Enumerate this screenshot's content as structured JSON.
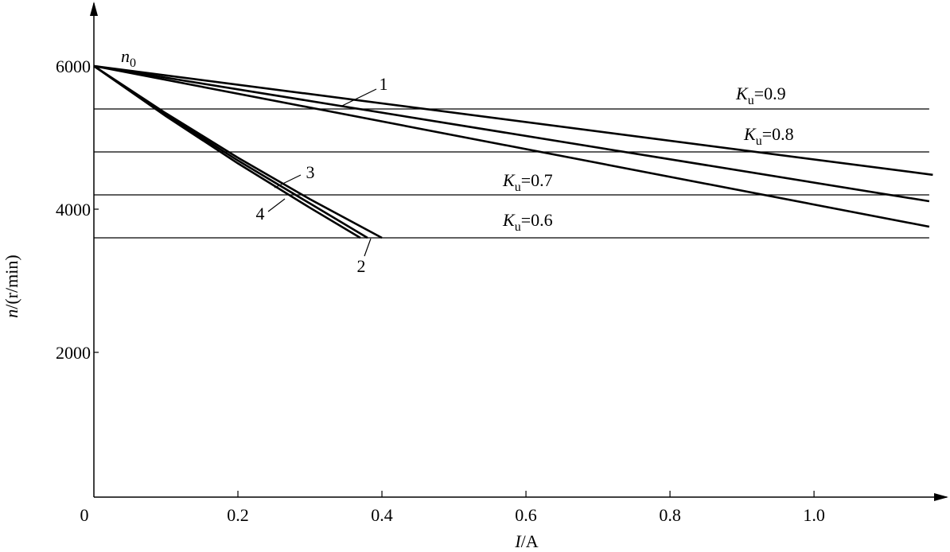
{
  "chart_data": {
    "type": "line",
    "x_label": {
      "symbol": "I",
      "text": "/A"
    },
    "y_label": {
      "symbol": "n",
      "text": "/(r/min)"
    },
    "origin_label": {
      "symbol": "n",
      "subscript": "0"
    },
    "xlim": [
      0,
      1.18
    ],
    "ylim": [
      0,
      6900
    ],
    "xticks": [
      0,
      0.2,
      0.4,
      0.6,
      0.8,
      {
        "value": 1,
        "label": "1.0"
      }
    ],
    "yticks": [
      2000,
      4000,
      6000
    ],
    "color": "#000000",
    "series": [
      {
        "x": [
          0,
          1.165
        ],
        "values": [
          6000,
          4480
        ]
      },
      {
        "name": "1",
        "x": [
          0,
          1.16
        ],
        "values": [
          6000,
          4111
        ]
      },
      {
        "x": [
          0,
          1.16
        ],
        "values": [
          6000,
          3756
        ]
      },
      {
        "name": "2",
        "x": [
          0,
          0.1,
          0.2,
          0.3,
          0.37
        ],
        "values": [
          6000,
          5300,
          4640,
          4020,
          3600
        ]
      },
      {
        "name": "3",
        "x": [
          0,
          0.1,
          0.2,
          0.3,
          0.4
        ],
        "values": [
          6000,
          5340,
          4720,
          4140,
          3600
        ]
      },
      {
        "name": "4",
        "x": [
          0,
          0.1,
          0.2,
          0.3,
          0.38
        ],
        "values": [
          6000,
          5320,
          4680,
          4080,
          3600
        ]
      }
    ],
    "hlines": [
      {
        "y": 5400,
        "x_end": 1.16,
        "label": {
          "symbol": "K",
          "subscript": "u",
          "text": "=0.9"
        }
      },
      {
        "y": 4800,
        "x_end": 1.16,
        "label": {
          "symbol": "K",
          "subscript": "u",
          "text": "=0.8"
        }
      },
      {
        "y": 4200,
        "x_end": 1.16,
        "label": {
          "symbol": "K",
          "subscript": "u",
          "text": "=0.7"
        }
      },
      {
        "y": 3600,
        "x_end": 1.16,
        "label": {
          "symbol": "K",
          "subscript": "u",
          "text": "=0.6"
        }
      }
    ]
  }
}
